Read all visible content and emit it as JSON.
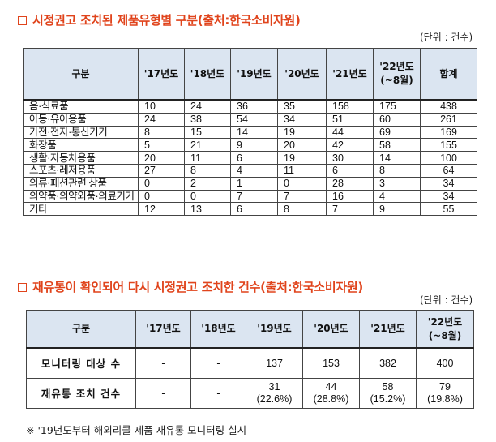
{
  "section1": {
    "title": "시정권고 조치된 제품유형별 구분(출처:한국소비자원)",
    "unit": "(단위 : 건수)",
    "headers": [
      "구분",
      "'17년도",
      "'18년도",
      "'19년도",
      "'20년도",
      "'21년도",
      "'22년도\n(~8월)",
      "합계"
    ],
    "rows": [
      [
        "음·식료품",
        "10",
        "24",
        "36",
        "35",
        "158",
        "175",
        "438"
      ],
      [
        "아동·유아용품",
        "24",
        "38",
        "54",
        "34",
        "51",
        "60",
        "261"
      ],
      [
        "가전·전자·통신기기",
        "8",
        "15",
        "14",
        "19",
        "44",
        "69",
        "169"
      ],
      [
        "화장품",
        "5",
        "21",
        "9",
        "20",
        "42",
        "58",
        "155"
      ],
      [
        "생활·자동차용품",
        "20",
        "11",
        "6",
        "19",
        "30",
        "14",
        "100"
      ],
      [
        "스포츠·레저용품",
        "27",
        "8",
        "4",
        "11",
        "6",
        "8",
        "64"
      ],
      [
        "의류·패션관련 상품",
        "0",
        "2",
        "1",
        "0",
        "28",
        "3",
        "34"
      ],
      [
        "의약품·의약외품·의료기기",
        "0",
        "0",
        "7",
        "7",
        "16",
        "4",
        "34"
      ],
      [
        "기타",
        "12",
        "13",
        "6",
        "8",
        "7",
        "9",
        "55"
      ]
    ]
  },
  "section2": {
    "title": "재유통이 확인되어 다시 시정권고 조치한 건수(출처:한국소비자원)",
    "unit": "(단위 : 건수)",
    "headers": [
      "구분",
      "'17년도",
      "'18년도",
      "'19년도",
      "'20년도",
      "'21년도",
      "'22년도\n(~8월)"
    ],
    "rows": [
      [
        "모니터링 대상 수",
        "-",
        "-",
        "137",
        "153",
        "382",
        "400"
      ],
      [
        "재유통 조치 건수",
        "-",
        "-",
        "31\n(22.6%)",
        "44\n(28.8%)",
        "58\n(15.2%)",
        "79\n(19.8%)"
      ]
    ]
  },
  "footnote": "※ '19년도부터 해외리콜 제품 재유통 모니터링 실시"
}
